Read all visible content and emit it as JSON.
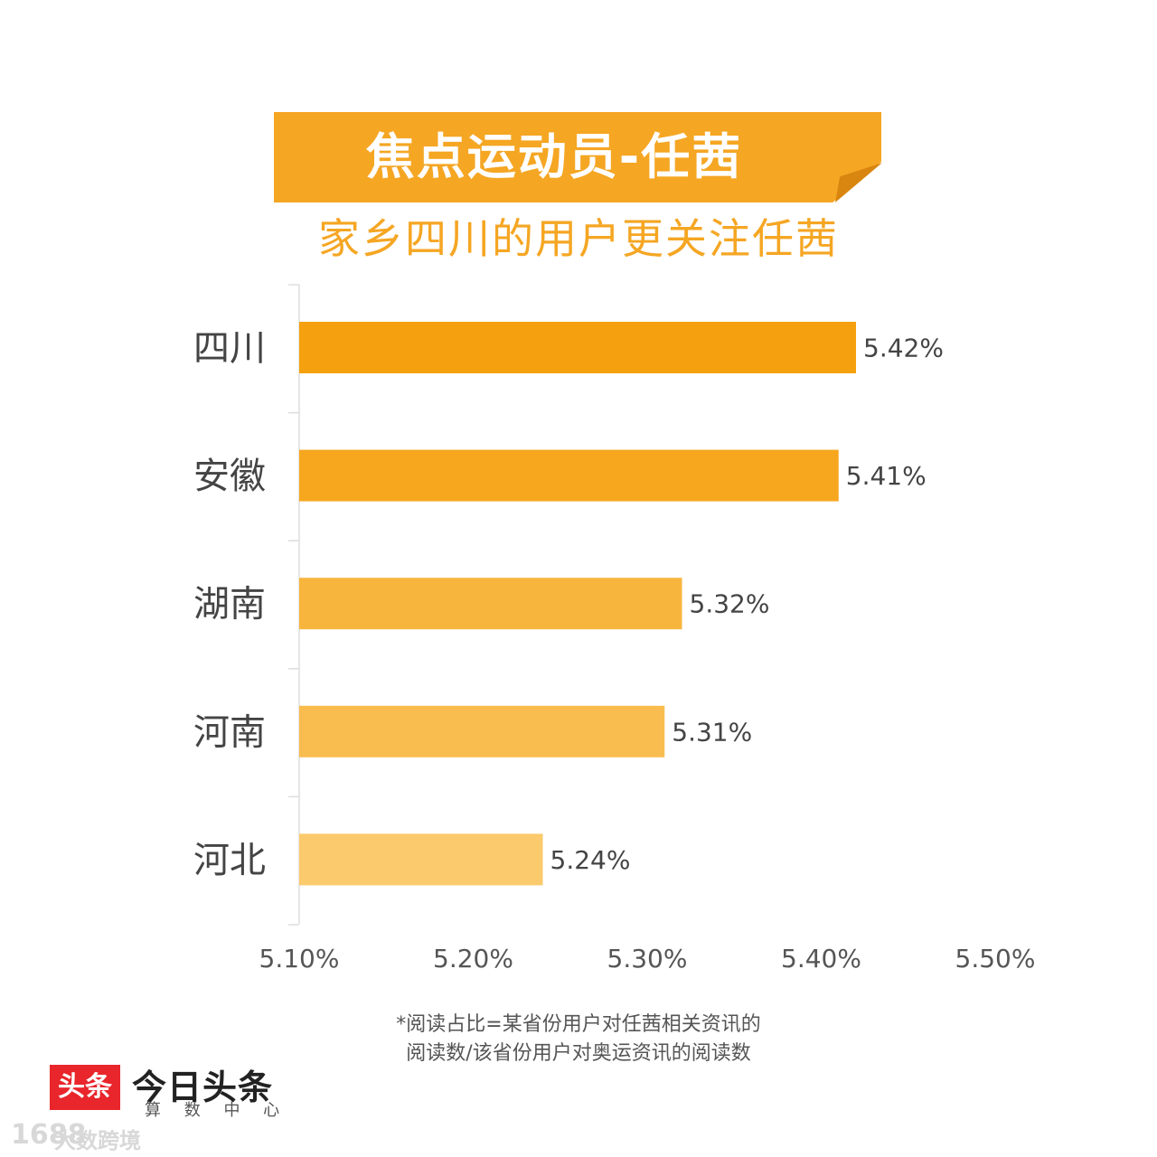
{
  "header": {
    "title": "焦点运动员-任茜",
    "subtitle": "家乡四川的用户更关注任茜"
  },
  "chart_data": {
    "type": "bar",
    "orientation": "horizontal",
    "categories": [
      "四川",
      "安徽",
      "湖南",
      "河南",
      "河北"
    ],
    "values": [
      5.42,
      5.41,
      5.32,
      5.31,
      5.24
    ],
    "value_labels": [
      "5.42%",
      "5.41%",
      "5.32%",
      "5.31%",
      "5.24%"
    ],
    "xlim": [
      5.1,
      5.5
    ],
    "xticks": [
      5.1,
      5.2,
      5.3,
      5.4,
      5.5
    ],
    "xtick_labels": [
      "5.10%",
      "5.20%",
      "5.30%",
      "5.40%",
      "5.50%"
    ],
    "bar_colors": [
      "#f5a10f",
      "#f6a71e",
      "#f8b53d",
      "#f9bc4e",
      "#fbca6c"
    ],
    "grid": false,
    "legend": "none"
  },
  "footnote": {
    "line1": "*阅读占比=某省份用户对任茜相关资讯的",
    "line2": "阅读数/该省份用户对奥运资讯的阅读数"
  },
  "brand": {
    "logo_text": "头条",
    "name": "今日头条",
    "sub": "算 数 中 心",
    "logo_color": "#e8262b"
  },
  "watermark": {
    "icon": "1688",
    "text": "大数跨境"
  }
}
